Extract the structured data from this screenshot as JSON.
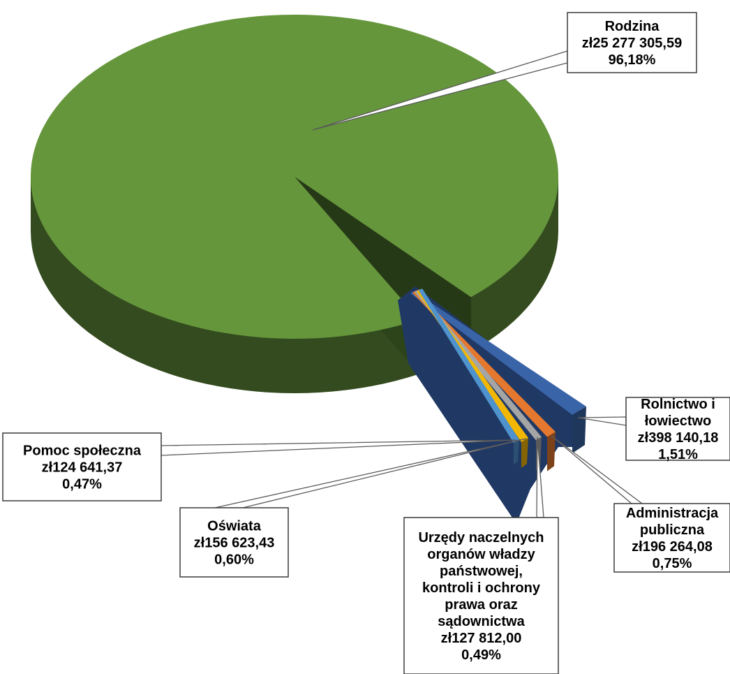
{
  "chart_data": {
    "type": "pie",
    "style": "3d-exploded",
    "slices": [
      {
        "label": "Rodzina",
        "value": "zł25 277 305,59",
        "percent": "96,18%",
        "amount": 25277305.59,
        "share": 96.18,
        "color": "#65963C"
      },
      {
        "label": "Rolnictwo i łowiectwo",
        "value": "zł398 140,18",
        "percent": "1,51%",
        "amount": 398140.18,
        "share": 1.51,
        "color": "#3A64A8"
      },
      {
        "label": "Administracja publiczna",
        "value": "zł196 264,08",
        "percent": "0,75%",
        "amount": 196264.08,
        "share": 0.75,
        "color": "#E4782E"
      },
      {
        "label": "Urzędy naczelnych organów władzy państwowej, kontroli i ochrony prawa oraz sądownictwa",
        "value": "zł127 812,00",
        "percent": "0,49%",
        "amount": 127812.0,
        "share": 0.49,
        "color": "#A5A5A5"
      },
      {
        "label": "Oświata",
        "value": "zł156 623,43",
        "percent": "0,60%",
        "amount": 156623.43,
        "share": 0.6,
        "color": "#F2B705"
      },
      {
        "label": "Pomoc społeczna",
        "value": "zł124 641,37",
        "percent": "0,47%",
        "amount": 124641.37,
        "share": 0.47,
        "color": "#4E92CE"
      }
    ]
  },
  "colors": {
    "back_slab": "#203864"
  }
}
